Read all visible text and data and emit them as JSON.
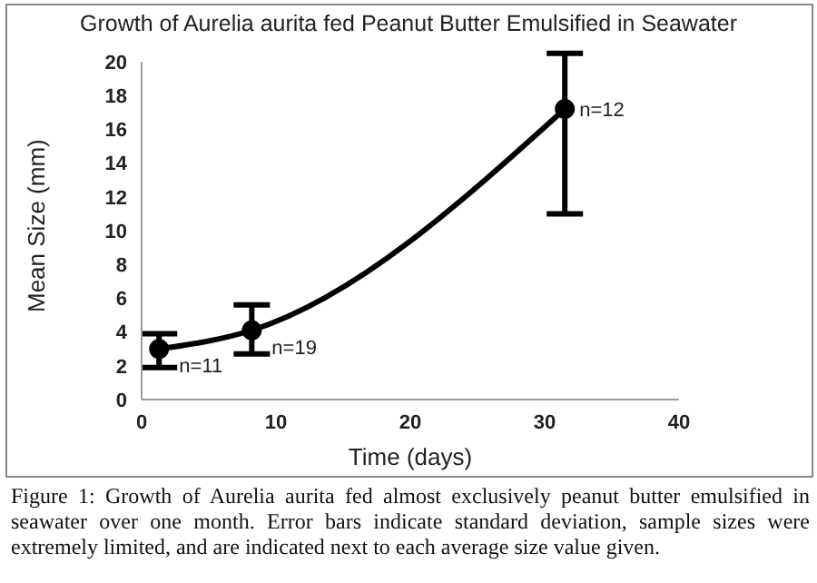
{
  "chart_data": {
    "type": "line",
    "title": "Growth of Aurelia aurita fed Peanut Butter Emulsified in Seawater",
    "xlabel": "Time (days)",
    "ylabel": "Mean Size (mm)",
    "x": [
      1.3,
      8.2,
      31.5
    ],
    "series": [
      {
        "color": "#000000",
        "values": [
          3.0,
          4.1,
          17.2
        ],
        "errors": [
          [
            1.9,
            3.9
          ],
          [
            2.7,
            5.6
          ],
          [
            11.0,
            20.5
          ]
        ]
      }
    ],
    "xlim": [
      0,
      40
    ],
    "xticks": [
      0,
      10,
      20,
      30,
      40
    ],
    "ylim": [
      0,
      20
    ],
    "yticks": [
      0,
      2,
      4,
      6,
      8,
      10,
      12,
      14,
      16,
      18,
      20
    ],
    "grid": false,
    "marker": "circle",
    "line_style": "solid",
    "annotations": [
      {
        "text": "n=11",
        "x": 1.3,
        "y": 3.0
      },
      {
        "text": "n=19",
        "x": 8.2,
        "y": 4.1
      },
      {
        "text": "n=12",
        "x": 31.5,
        "y": 17.2
      },
      "Figure 1: Growth of Aurelia aurita fed almost exclusively peanut butter emulsified in seawater over one month. Error bars indicate standard deviation, sample sizes were extremely limited, and are indicated next to each average size value given."
    ]
  }
}
